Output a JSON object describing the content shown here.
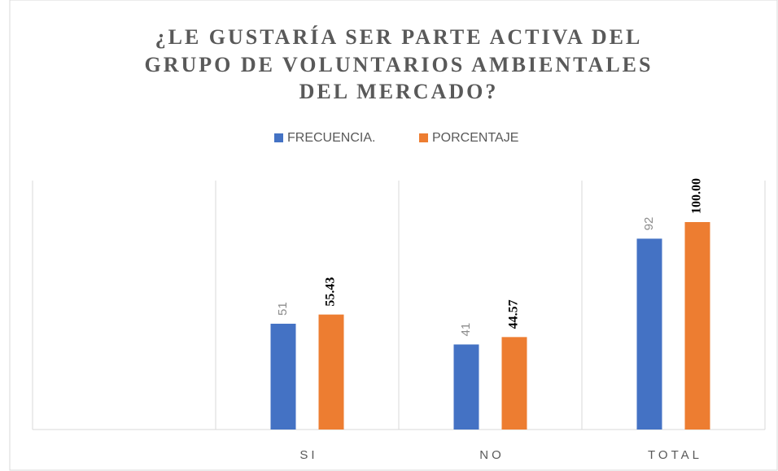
{
  "chart_data": {
    "type": "bar",
    "title": [
      "¿LE GUSTARÍA SER PARTE ACTIVA DEL",
      "GRUPO DE VOLUNTARIOS AMBIENTALES",
      "DEL MERCADO?"
    ],
    "categories": [
      null,
      "SI",
      "NO",
      "TOTAL"
    ],
    "series": [
      {
        "name": "FRECUENCIA.",
        "color": "#4472c4",
        "values": [
          null,
          51,
          41,
          92
        ]
      },
      {
        "name": "PORCENTAJE",
        "color": "#ed7d31",
        "values": [
          null,
          55.43,
          44.57,
          100
        ],
        "value_labels": [
          null,
          "55.43",
          "44.57",
          "100.00"
        ]
      }
    ],
    "ylim": [
      0,
      120
    ],
    "legend": "top",
    "grid": true
  }
}
